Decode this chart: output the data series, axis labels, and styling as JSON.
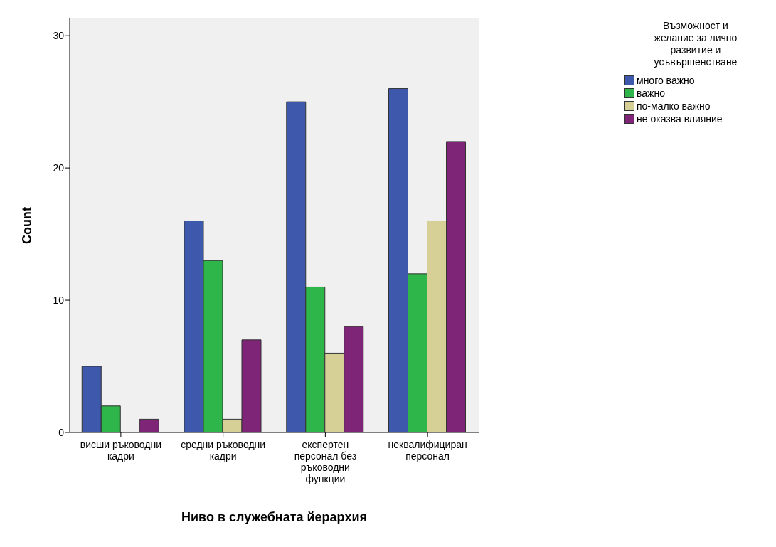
{
  "chart_data": {
    "type": "bar",
    "xlabel": "Ниво в служебната йерархия",
    "ylabel": "Count",
    "legend_title": "Възможност и желание за лично развитие и усъвършенстване",
    "categories": [
      "висши ръководни кадри",
      "средни ръководни кадри",
      "експертен персонал без ръководни функции",
      "неквалифициран персонал"
    ],
    "series": [
      {
        "name": "много важно",
        "color": "#3e58ac",
        "values": [
          5,
          16,
          25,
          26
        ]
      },
      {
        "name": "важно",
        "color": "#2fb64a",
        "values": [
          2,
          13,
          11,
          12
        ]
      },
      {
        "name": "по-малко важно",
        "color": "#d6cf96",
        "values": [
          0,
          1,
          6,
          16
        ]
      },
      {
        "name": "не оказва влияние",
        "color": "#7f2578",
        "values": [
          1,
          7,
          8,
          22
        ]
      }
    ],
    "ylim": [
      0,
      31.3
    ],
    "yticks": [
      0,
      10,
      20,
      30
    ],
    "grid": false,
    "legend": "top right"
  }
}
